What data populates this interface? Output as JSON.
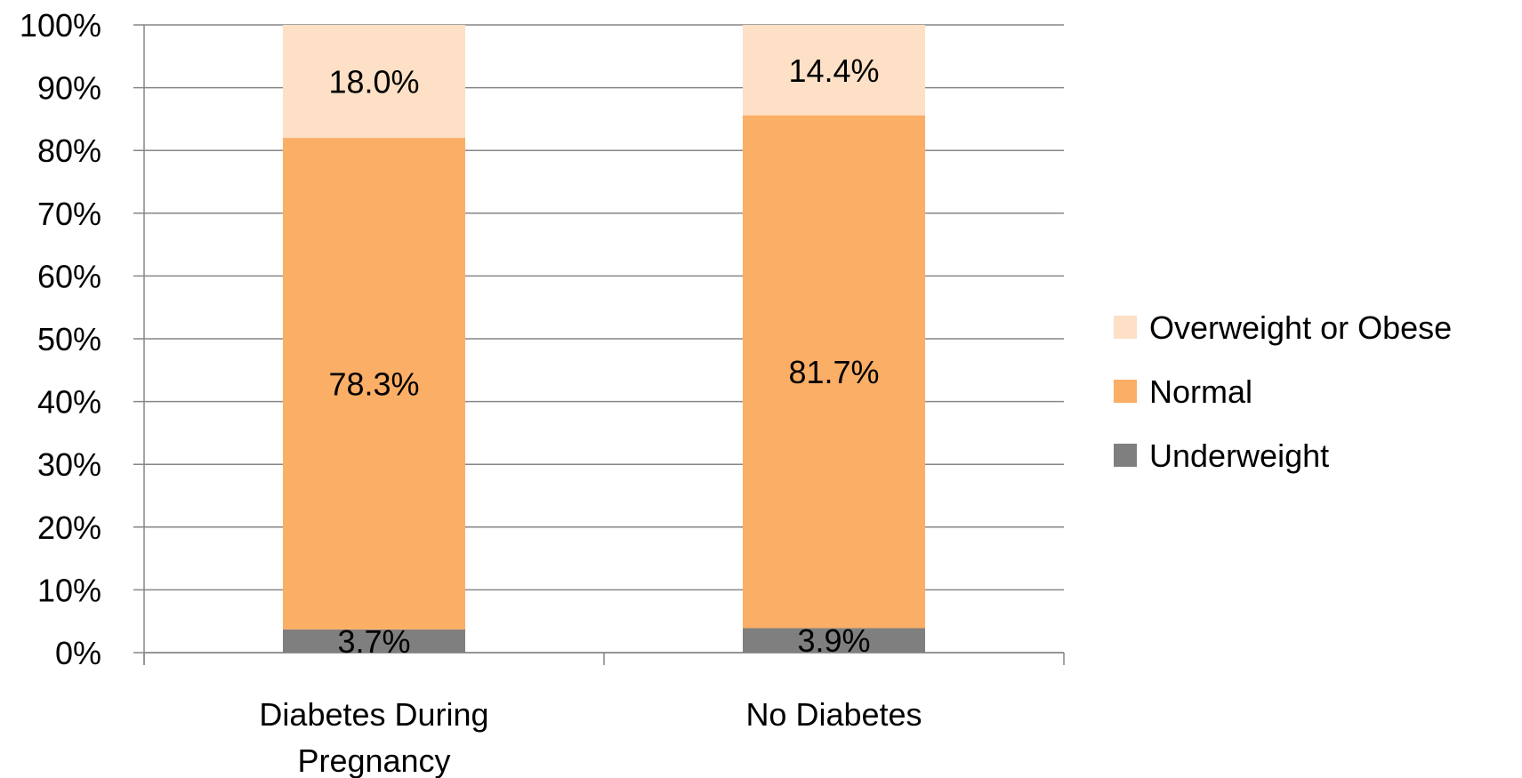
{
  "chart_data": {
    "type": "bar",
    "stacked": true,
    "categories": [
      "Diabetes During Pregnancy",
      "No Diabetes"
    ],
    "category_lines": [
      [
        "Diabetes During",
        "Pregnancy"
      ],
      [
        "No Diabetes"
      ]
    ],
    "series": [
      {
        "name": "Underweight",
        "values": [
          3.7,
          3.9
        ],
        "labels": [
          "3.7%",
          "3.9%"
        ],
        "color": "#7f7f7f"
      },
      {
        "name": "Normal",
        "values": [
          78.3,
          81.7
        ],
        "labels": [
          "78.3%",
          "81.7%"
        ],
        "color": "#fbae66"
      },
      {
        "name": "Overweight or Obese",
        "values": [
          18.0,
          14.4
        ],
        "labels": [
          "18.0%",
          "14.4%"
        ],
        "color": "#fde0c5"
      }
    ],
    "title": "",
    "xlabel": "",
    "ylabel": "",
    "ylim": [
      0,
      100
    ],
    "yticks": [
      "0%",
      "10%",
      "20%",
      "30%",
      "40%",
      "50%",
      "60%",
      "70%",
      "80%",
      "90%",
      "100%"
    ],
    "grid": true,
    "legend_position": "right",
    "legend_order": [
      "Overweight or Obese",
      "Normal",
      "Underweight"
    ],
    "gridline_color": "#868686"
  }
}
